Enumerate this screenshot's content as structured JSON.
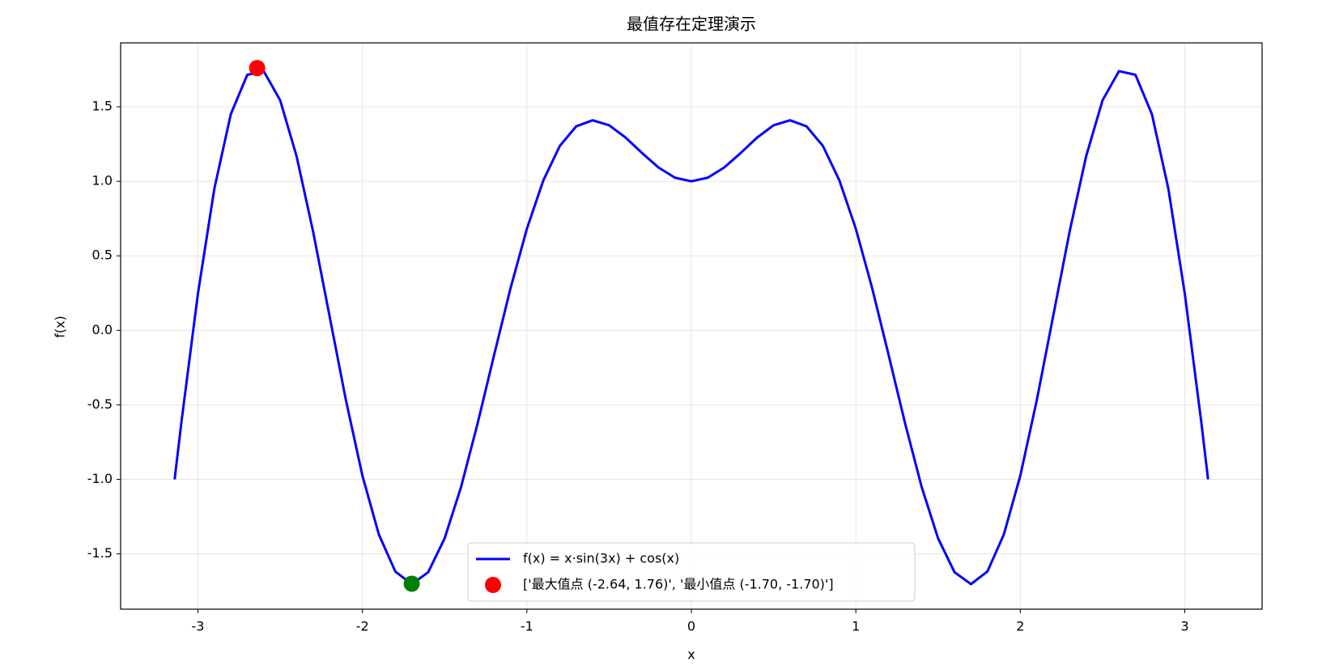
{
  "chart_data": {
    "type": "line",
    "title": "最值存在定理演示",
    "xlabel": "x",
    "ylabel": "f(x)",
    "xlim": [
      -3.47,
      3.47
    ],
    "ylim": [
      -1.871,
      1.929
    ],
    "xticks": [
      -3,
      -2,
      -1,
      0,
      1,
      2,
      3
    ],
    "yticks": [
      -1.5,
      {
        "value": -1,
        "label": "-1.0"
      },
      -0.5,
      {
        "value": 0,
        "label": "0.0"
      },
      0.5,
      {
        "value": 1,
        "label": "1.0"
      },
      1.5
    ],
    "grid": true,
    "legend": "lower center",
    "series": [
      {
        "name": "f(x) = x·sin(3x) + cos(x)",
        "color": "#0000ff",
        "x": [
          -3.1416,
          -3.1,
          -3.0,
          -2.9,
          -2.8,
          -2.7,
          -2.6,
          -2.5,
          -2.4,
          -2.3,
          -2.2,
          -2.1,
          -2.0,
          -1.9,
          -1.8,
          -1.7,
          -1.6,
          -1.5,
          -1.4,
          -1.3,
          -1.2,
          -1.1,
          -1.0,
          -0.9,
          -0.8,
          -0.7,
          -0.6,
          -0.5,
          -0.4,
          -0.3,
          -0.2,
          -0.1,
          0,
          0.1,
          0.2,
          0.3,
          0.4,
          0.5,
          0.6,
          0.7,
          0.8,
          0.9,
          1.0,
          1.1,
          1.2,
          1.3,
          1.4,
          1.5,
          1.6,
          1.7,
          1.8,
          1.9,
          2.0,
          2.1,
          2.2,
          2.3,
          2.4,
          2.5,
          2.6,
          2.7,
          2.8,
          2.9,
          3.0,
          3.1,
          3.1416
        ],
        "values": [
          -1,
          -0.6133,
          0.2464,
          0.9517,
          1.4507,
          1.7146,
          1.7393,
          1.5439,
          1.1674,
          0.6641,
          0.0969,
          -0.4696,
          -0.975,
          -1.3696,
          -1.6182,
          -1.7027,
          -1.6231,
          -1.3956,
          -1.0502,
          -0.6266,
          -0.1687,
          0.2801,
          0.6814,
          1.0063,
          1.2371,
          1.3691,
          1.4096,
          1.3763,
          1.2939,
          1.1903,
          1.093,
          1.0246,
          1,
          1.0246,
          1.093,
          1.1903,
          1.2939,
          1.3763,
          1.4096,
          1.3691,
          1.2371,
          1.0063,
          0.6814,
          0.2801,
          -0.1687,
          -0.6266,
          -1.0502,
          -1.3956,
          -1.6231,
          -1.7027,
          -1.6182,
          -1.3696,
          -0.975,
          -0.4696,
          0.0969,
          0.6641,
          1.1674,
          1.5439,
          1.7393,
          1.7146,
          1.4507,
          0.9517,
          0.2464,
          -0.6133,
          -1
        ]
      },
      {
        "name": "['最大值点 (-2.64, 1.76)', '最小值点 (-1.70, -1.70)']",
        "type": "scatter",
        "colors": [
          "#ff0000",
          "#008000"
        ],
        "x": [
          -2.64,
          -1.7
        ],
        "values": [
          1.76,
          -1.7
        ]
      }
    ]
  }
}
